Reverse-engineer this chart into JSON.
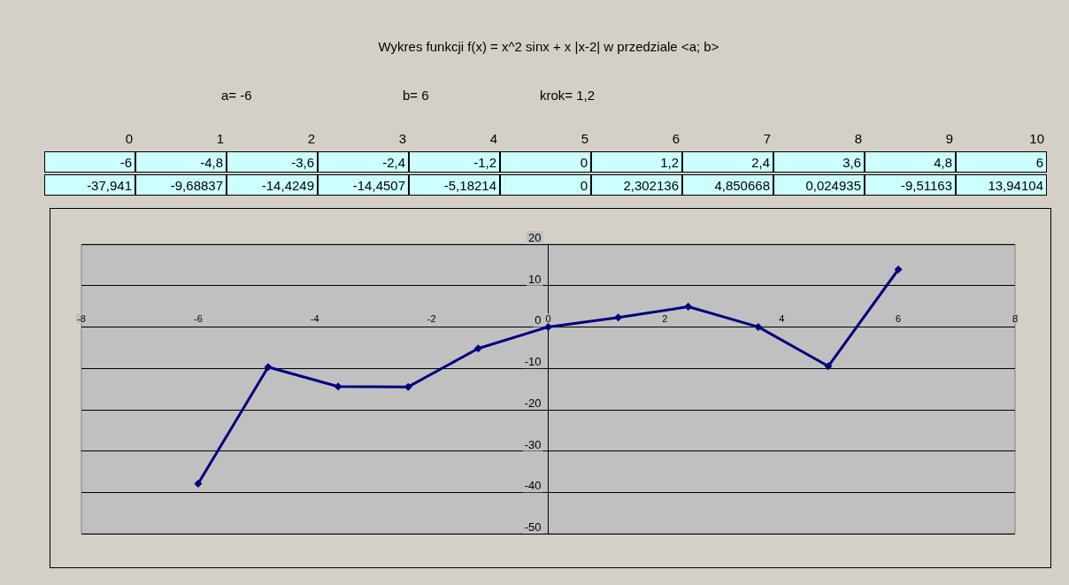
{
  "chart_data": {
    "type": "line",
    "title": "Wykres funkcji f(x) = x^2 sinx + x |x-2| w przedziale <a; b>",
    "annotations": [
      "a= -6",
      "b= 6",
      "krok= 1,2",
      "0",
      "1",
      "2",
      "3",
      "4",
      "5",
      "6",
      "7",
      "8",
      "9",
      "10",
      "-6",
      "-4,8",
      "-3,6",
      "-2,4",
      "-1,2",
      "0",
      "1,2",
      "2,4",
      "3,6",
      "4,8",
      "6",
      "-37,941",
      "-9,68837",
      "-14,4249",
      "-14,4507",
      "-5,18214",
      "0",
      "2,302136",
      "4,850668",
      "0,024935",
      "-9,51163",
      "13,94104"
    ],
    "x": [
      -6,
      -4.8,
      -3.6,
      -2.4,
      -1.2,
      0,
      1.2,
      2.4,
      3.6,
      4.8,
      6
    ],
    "series": [
      {
        "color": "#000080",
        "values": [
          -37.9,
          -9.7,
          -14.4,
          -14.5,
          -5.2,
          0,
          2.3,
          4.9,
          0.0,
          -9.5,
          13.9
        ]
      }
    ],
    "xlim": [
      -8,
      8
    ],
    "xticks": [
      -8,
      -6,
      -4,
      -2,
      0,
      2,
      4,
      6,
      8
    ],
    "ylim": [
      -50,
      20
    ],
    "yticks": [
      -50,
      -40,
      -30,
      -20,
      -10,
      0,
      10,
      20
    ],
    "grid": "y",
    "marker": "diamond",
    "line_style": "solid"
  }
}
